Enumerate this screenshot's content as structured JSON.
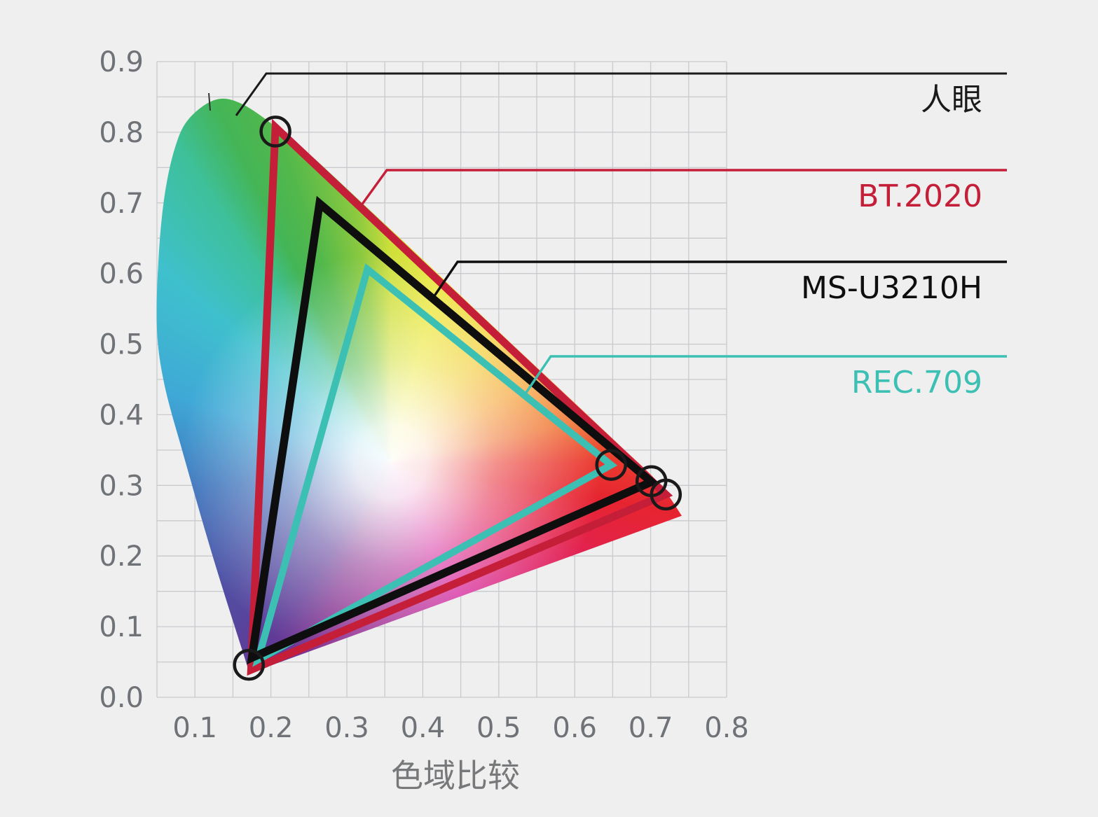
{
  "chart_data": {
    "type": "area",
    "subtype": "cie-1931-chromaticity-gamut-comparison",
    "title": "色域比较",
    "axes": {
      "x": {
        "min": 0.05,
        "max": 0.8,
        "grid_step": 0.05,
        "tick_values": [
          0.1,
          0.2,
          0.3,
          0.4,
          0.5,
          0.6,
          0.7,
          0.8
        ],
        "tick_labels": [
          "0.1",
          "0.2",
          "0.3",
          "0.4",
          "0.5",
          "0.6",
          "0.7",
          "0.8"
        ]
      },
      "y": {
        "min": 0.0,
        "max": 0.9,
        "grid_step": 0.05,
        "tick_values": [
          0.0,
          0.1,
          0.2,
          0.3,
          0.4,
          0.5,
          0.6,
          0.7,
          0.8,
          0.9
        ],
        "tick_labels": [
          "0.0",
          "0.1",
          "0.2",
          "0.3",
          "0.4",
          "0.5",
          "0.6",
          "0.7",
          "0.8",
          "0.9"
        ]
      },
      "grid": true
    },
    "series": [
      {
        "name": "人眼",
        "kind": "spectral_locus_fill",
        "outline_color": "#1a1a1a",
        "points": [
          [
            0.172,
            0.034
          ],
          [
            0.125,
            0.194
          ],
          [
            0.085,
            0.343
          ],
          [
            0.06,
            0.442
          ],
          [
            0.05,
            0.521
          ],
          [
            0.052,
            0.62
          ],
          [
            0.06,
            0.71
          ],
          [
            0.074,
            0.779
          ],
          [
            0.092,
            0.819
          ],
          [
            0.127,
            0.846
          ],
          [
            0.162,
            0.84
          ],
          [
            0.212,
            0.803
          ],
          [
            0.258,
            0.762
          ],
          [
            0.323,
            0.697
          ],
          [
            0.397,
            0.623
          ],
          [
            0.489,
            0.529
          ],
          [
            0.581,
            0.436
          ],
          [
            0.655,
            0.361
          ],
          [
            0.71,
            0.304
          ],
          [
            0.741,
            0.257
          ]
        ]
      },
      {
        "name": "BT.2020",
        "kind": "gamut_triangle",
        "color": "#c41e38",
        "stroke_width": 11,
        "vertices": [
          [
            0.206,
            0.807
          ],
          [
            0.174,
            0.039
          ],
          [
            0.72,
            0.287
          ]
        ]
      },
      {
        "name": "MS-U3210H",
        "kind": "gamut_triangle",
        "color": "#0e0e0e",
        "stroke_width": 11.5,
        "vertices": [
          [
            0.264,
            0.699
          ],
          [
            0.175,
            0.056
          ],
          [
            0.701,
            0.305
          ]
        ]
      },
      {
        "name": "REC.709",
        "kind": "gamut_triangle",
        "color": "#3cc0b4",
        "stroke_width": 10,
        "vertices": [
          [
            0.327,
            0.606
          ],
          [
            0.183,
            0.053
          ],
          [
            0.648,
            0.329
          ]
        ]
      }
    ],
    "markers": {
      "shape": "circle",
      "color": "#1a1a1a",
      "radius_px": 20.5,
      "points": [
        [
          0.206,
          0.801
        ],
        [
          0.171,
          0.046
        ],
        [
          0.648,
          0.329
        ],
        [
          0.701,
          0.306
        ],
        [
          0.72,
          0.287
        ]
      ]
    },
    "legend": {
      "position": "right",
      "items": [
        {
          "label": "人眼",
          "color": "#1a1a1a",
          "points_to": "spectral locus (human eye gamut)"
        },
        {
          "label": "BT.2020",
          "color": "#c41e38",
          "points_to": "BT.2020 triangle"
        },
        {
          "label": "MS-U3210H",
          "color": "#0e0e0e",
          "points_to": "MS-U3210H triangle"
        },
        {
          "label": "REC.709",
          "color": "#3cc0b4",
          "points_to": "REC.709 triangle"
        }
      ]
    }
  },
  "palette": {
    "background": "#efefef",
    "grid": "#c9cacd",
    "tick_label": "#6f7276",
    "title": "#77787a",
    "marker_stroke": "#1a1a1a"
  }
}
